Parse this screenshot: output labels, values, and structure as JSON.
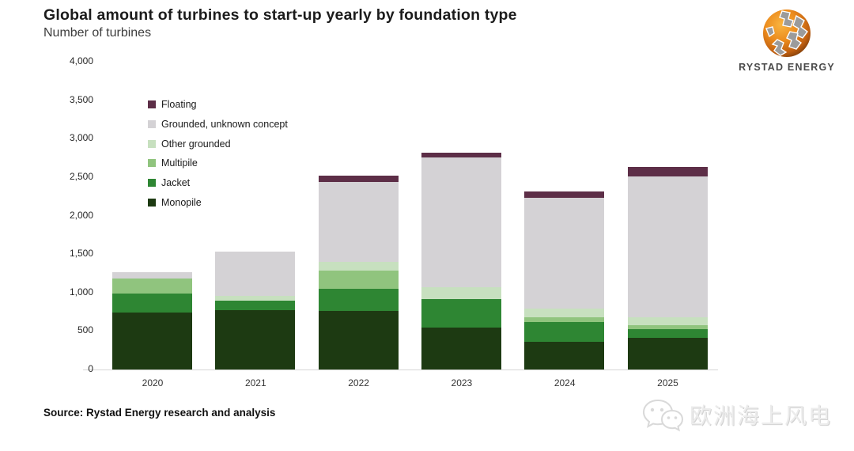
{
  "header": {
    "title": "Global amount of turbines to start-up yearly by foundation type",
    "subtitle": "Number of turbines"
  },
  "logo": {
    "text": "RYSTAD ENERGY"
  },
  "chart_data": {
    "type": "bar",
    "stacked": true,
    "title": "Global amount of turbines to start-up yearly by foundation type",
    "ylabel": "Number of turbines",
    "xlabel": "",
    "categories": [
      "2020",
      "2021",
      "2022",
      "2023",
      "2024",
      "2025"
    ],
    "series": [
      {
        "name": "Monopile",
        "color": "#1d3a12",
        "values": [
          740,
          770,
          760,
          550,
          360,
          410
        ]
      },
      {
        "name": "Jacket",
        "color": "#2e8633",
        "values": [
          245,
          125,
          290,
          365,
          255,
          110
        ]
      },
      {
        "name": "Multipile",
        "color": "#90c47e",
        "values": [
          195,
          0,
          240,
          0,
          60,
          55
        ]
      },
      {
        "name": "Other grounded",
        "color": "#c7e0bf",
        "values": [
          0,
          60,
          105,
          150,
          115,
          100
        ]
      },
      {
        "name": "Grounded, unknown concept",
        "color": "#d4d2d5",
        "values": [
          85,
          575,
          1040,
          1690,
          1440,
          1830
        ]
      },
      {
        "name": "Floating",
        "color": "#5d2e47",
        "values": [
          0,
          0,
          80,
          60,
          85,
          125
        ]
      }
    ],
    "totals": [
      1265,
      1530,
      2515,
      2815,
      2315,
      2630
    ],
    "ylim": [
      0,
      4000
    ],
    "ytick_step": 500,
    "grid": false,
    "legend_position": "upper-left-inside",
    "legend_order_top_to_bottom": [
      "Floating",
      "Grounded, unknown concept",
      "Other grounded",
      "Multipile",
      "Jacket",
      "Monopile"
    ]
  },
  "footer": {
    "source": "Source: Rystad Energy research and analysis",
    "watermark": "欧洲海上风电"
  }
}
